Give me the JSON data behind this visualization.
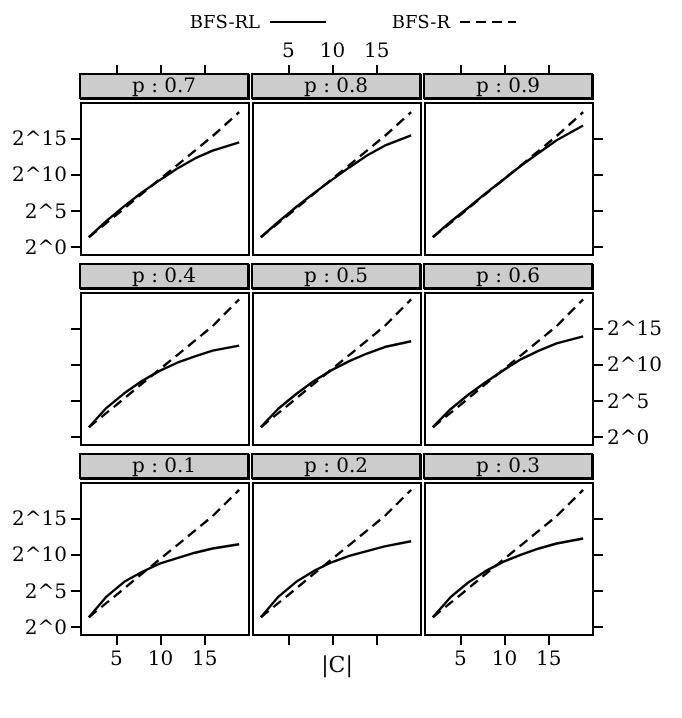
{
  "chart_data": [
    {
      "type": "line",
      "title": "p : 0.7",
      "legend": "top",
      "log": true,
      "tick_labels": "y",
      "xlim": [
        1,
        20
      ],
      "ylim": [
        0.5,
        1048576
      ],
      "xticks": [
        {
          "value": 5,
          "label": null
        },
        {
          "value": 10,
          "label": null
        },
        {
          "value": 15,
          "label": null
        }
      ],
      "yticks": [
        {
          "value": 1,
          "label": "2^0"
        },
        {
          "value": 32,
          "label": "2^5"
        },
        {
          "value": 1024,
          "label": "2^10"
        },
        {
          "value": 32768,
          "label": "2^15"
        }
      ],
      "x": [
        2,
        4,
        6,
        8,
        10,
        12,
        14,
        16,
        19
      ],
      "series": [
        {
          "name": "BFS-RL",
          "color": "#000000",
          "line_style": "solid",
          "values": [
            2.5,
            12,
            49,
            180,
            590,
            1800,
            4700,
            10000,
            22000
          ]
        },
        {
          "name": "BFS-R",
          "color": "#000000",
          "line_style": "dashed",
          "values": [
            2.5,
            9.8,
            39,
            160,
            630,
            2500,
            10000,
            40000,
            400000
          ]
        }
      ]
    },
    {
      "type": "line",
      "title": "p : 0.8",
      "log": true,
      "tick_labels": "x",
      "xlim": [
        1,
        20
      ],
      "ylim": [
        0.5,
        1048576
      ],
      "xticks": [
        5,
        10,
        15
      ],
      "x": [
        2,
        4,
        6,
        8,
        10,
        12,
        14,
        16,
        19
      ],
      "series": [
        {
          "color": "#000000",
          "line_style": "solid",
          "values": [
            2.5,
            11,
            45,
            170,
            590,
            2000,
            6200,
            16000,
            43000
          ]
        },
        {
          "color": "#000000",
          "line_style": "dashed",
          "values": [
            2.5,
            9.8,
            39,
            160,
            630,
            2500,
            10000,
            40000,
            400000
          ]
        }
      ]
    },
    {
      "type": "line",
      "title": "p : 0.9",
      "log": true,
      "tick_labels": false,
      "xlim": [
        1,
        20
      ],
      "ylim": [
        0.5,
        1048576
      ],
      "xticks": [
        {
          "value": 5,
          "label": null
        },
        {
          "value": 10,
          "label": null
        },
        {
          "value": 15,
          "label": null
        }
      ],
      "yticks": [
        {
          "value": 1,
          "label": null
        },
        {
          "value": 32,
          "label": null
        },
        {
          "value": 1024,
          "label": null
        },
        {
          "value": 32768,
          "label": null
        }
      ],
      "x": [
        2,
        4,
        6,
        8,
        10,
        12,
        14,
        16,
        19
      ],
      "series": [
        {
          "color": "#000000",
          "line_style": "solid",
          "values": [
            2.5,
            11,
            42,
            170,
            630,
            2400,
            8200,
            27000,
            110000
          ]
        },
        {
          "color": "#000000",
          "line_style": "dashed",
          "values": [
            2.5,
            9.8,
            39,
            160,
            630,
            2500,
            10000,
            40000,
            400000
          ]
        }
      ]
    },
    {
      "type": "line",
      "title": "p : 0.4",
      "log": true,
      "tick_labels": false,
      "xlim": [
        1,
        20
      ],
      "ylim": [
        0.5,
        1048576
      ],
      "yticks": [
        {
          "value": 1,
          "label": null
        },
        {
          "value": 32,
          "label": null
        },
        {
          "value": 1024,
          "label": null
        },
        {
          "value": 32768,
          "label": null
        }
      ],
      "x": [
        2,
        4,
        6,
        8,
        10,
        12,
        14,
        16,
        19
      ],
      "series": [
        {
          "color": "#000000",
          "line_style": "solid",
          "values": [
            2.5,
            16,
            64,
            210,
            550,
            1200,
            2200,
            3800,
            6200
          ]
        },
        {
          "color": "#000000",
          "line_style": "dashed",
          "values": [
            2.5,
            9.8,
            39,
            160,
            630,
            2500,
            10000,
            40000,
            520000
          ]
        }
      ]
    },
    {
      "type": "line",
      "title": "p : 0.5",
      "log": true,
      "tick_labels": false,
      "xlim": [
        1,
        20
      ],
      "ylim": [
        0.5,
        1048576
      ],
      "x": [
        2,
        4,
        6,
        8,
        10,
        12,
        14,
        16,
        19
      ],
      "series": [
        {
          "color": "#000000",
          "line_style": "solid",
          "values": [
            2.5,
            15,
            60,
            210,
            590,
            1400,
            2900,
            5400,
            9400
          ]
        },
        {
          "color": "#000000",
          "line_style": "dashed",
          "values": [
            2.5,
            9.8,
            39,
            160,
            630,
            2500,
            10000,
            40000,
            520000
          ]
        }
      ]
    },
    {
      "type": "line",
      "title": "p : 0.6",
      "log": true,
      "tick_labels": "y",
      "xlim": [
        1,
        20
      ],
      "ylim": [
        0.5,
        1048576
      ],
      "yticks": [
        {
          "value": 1,
          "label": "2^0"
        },
        {
          "value": 32,
          "label": "2^5"
        },
        {
          "value": 1024,
          "label": "2^10"
        },
        {
          "value": 32768,
          "label": "2^15"
        }
      ],
      "x": [
        2,
        4,
        6,
        8,
        10,
        12,
        14,
        16,
        19
      ],
      "series": [
        {
          "color": "#000000",
          "line_style": "solid",
          "values": [
            2.5,
            14,
            56,
            190,
            590,
            1700,
            3800,
            7600,
            15000
          ]
        },
        {
          "color": "#000000",
          "line_style": "dashed",
          "values": [
            2.5,
            9.8,
            39,
            160,
            630,
            2500,
            10000,
            40000,
            520000
          ]
        }
      ]
    },
    {
      "type": "line",
      "title": "p : 0.1",
      "log": true,
      "xlim": [
        1,
        20
      ],
      "ylim": [
        0.5,
        1048576
      ],
      "xticks": [
        5,
        10,
        15
      ],
      "yticks": [
        {
          "value": 1,
          "label": "2^0"
        },
        {
          "value": 32,
          "label": "2^5"
        },
        {
          "value": 1024,
          "label": "2^10"
        },
        {
          "value": 32768,
          "label": "2^15"
        }
      ],
      "x": [
        2,
        4,
        6,
        8,
        10,
        12,
        14,
        16,
        19
      ],
      "series": [
        {
          "color": "#000000",
          "line_style": "solid",
          "values": [
            2.5,
            18,
            74,
            190,
            420,
            720,
            1200,
            1800,
            2700
          ]
        },
        {
          "color": "#000000",
          "line_style": "dashed",
          "values": [
            2.5,
            9.8,
            39,
            160,
            630,
            2500,
            10000,
            40000,
            490000
          ]
        }
      ]
    },
    {
      "type": "line",
      "title": "p : 0.2",
      "xlabel": "|C|",
      "log": true,
      "tick_labels": false,
      "xlim": [
        1,
        20
      ],
      "ylim": [
        0.5,
        1048576
      ],
      "xticks": [
        {
          "value": 5,
          "label": null
        },
        {
          "value": 10,
          "label": null
        },
        {
          "value": 15,
          "label": null
        }
      ],
      "x": [
        2,
        4,
        6,
        8,
        10,
        12,
        14,
        16,
        19
      ],
      "series": [
        {
          "color": "#000000",
          "line_style": "solid",
          "values": [
            2.5,
            18,
            74,
            210,
            480,
            890,
            1400,
            2200,
            3600
          ]
        },
        {
          "color": "#000000",
          "line_style": "dashed",
          "values": [
            2.5,
            9.8,
            39,
            160,
            630,
            2500,
            10000,
            40000,
            490000
          ]
        }
      ]
    },
    {
      "type": "line",
      "title": "p : 0.3",
      "log": true,
      "tick_labels": "x",
      "xlim": [
        1,
        20
      ],
      "ylim": [
        0.5,
        1048576
      ],
      "xticks": [
        5,
        10,
        15
      ],
      "yticks": [
        {
          "value": 1,
          "label": null
        },
        {
          "value": 32,
          "label": null
        },
        {
          "value": 1024,
          "label": null
        },
        {
          "value": 32768,
          "label": null
        }
      ],
      "x": [
        2,
        4,
        6,
        8,
        10,
        12,
        14,
        16,
        19
      ],
      "series": [
        {
          "color": "#000000",
          "line_style": "solid",
          "values": [
            2.5,
            17,
            69,
            210,
            510,
            1000,
            1800,
            2900,
            4700
          ]
        },
        {
          "color": "#000000",
          "line_style": "dashed",
          "values": [
            2.5,
            9.8,
            39,
            160,
            630,
            2500,
            10000,
            40000,
            490000
          ]
        }
      ]
    }
  ]
}
